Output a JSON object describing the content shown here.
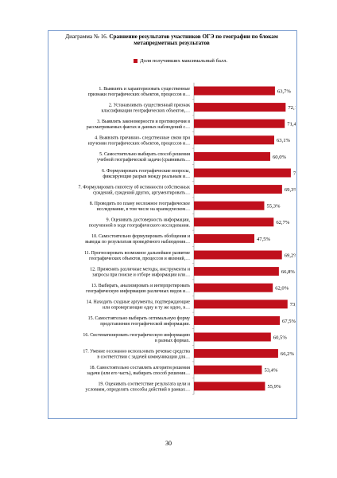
{
  "title": {
    "prefix": "Диаграмма № 16. ",
    "bold": "Сравнение результатов участников ОГЭ по географии по блокам метапредметных результатов"
  },
  "page_number": "30",
  "colors": {
    "bar": "#c0101c",
    "frame": "#7a9ccf"
  },
  "chart_data": {
    "type": "bar",
    "orientation": "horizontal",
    "legend": {
      "label": "Доля получивших максимальный балл.",
      "position": "top"
    },
    "xlim": [
      0,
      100
    ],
    "grid": false,
    "categories": [
      [
        "1. Выявлять и характеризовать существенные",
        "признаки географических объектов,  процессов и…"
      ],
      [
        "2. Устанавливать существенный признак",
        "классификации географических объектов,…"
      ],
      [
        "3. Выявлять закономерности и противоречия в",
        "рассматриваемых фактах и данных наблюдений с…"
      ],
      [
        "4. Выявлять причинно- следственные связи при",
        "изучении географических объектов, процессов и…"
      ],
      [
        "5. Самостоятельно выбирать способ решения",
        "учебной географической задачи (сравнивать…"
      ],
      [
        "6. Формулировать географические вопросы,",
        "фиксирующие разрыв между реальным и…"
      ],
      [
        "7. Формулировать гипотезу об истинности собственных",
        "суждений, суждений других, аргументировать…"
      ],
      [
        "8. Проводить по плану несложное географическое",
        "исследование, в том числе на краеведческом…"
      ],
      [
        "9. Оценивать достоверность информации,",
        "полученной в ходе географического исследования."
      ],
      [
        "10. Самостоятельно формулировать обобщения и",
        "выводы по результатам проведённого наблюдения…"
      ],
      [
        "11. Прогнозировать возможное дальнейшее развитие",
        "географических объектов, процессов и явлений,…"
      ],
      [
        "12. Применять различные методы, инструменты и",
        "запросы при поиске и отборе информации или…"
      ],
      [
        "13. Выбирать, анализировать и интерпретировать",
        "географическую информацию различных видов и…"
      ],
      [
        "14. Находить сходные аргументы, подтверждающие",
        "или опровергающие одну и ту же идею, в…"
      ],
      [
        "15. Самостоятельно выбирать оптимальную форму",
        "представления географической информации."
      ],
      [
        "16. Систематизировать географическую информацию",
        "в разных формах."
      ],
      [
        "17. Умение осознанно использовать речевые средства",
        "в соответствии с задачей коммуникации для…"
      ],
      [
        "18. Самостоятельно составлять алгоритм решения",
        "задачи (или его часть), выбирать способ решения…"
      ],
      [
        "19. Оценивать соответствие результата цели и",
        "условиям, определять способы действий в рамках…"
      ]
    ],
    "values": [
      63.7,
      72.1,
      71.4,
      63.1,
      60.0,
      76.2,
      69.3,
      55.3,
      62.7,
      47.5,
      69.2,
      66.8,
      62.0,
      73.6,
      67.5,
      60.5,
      66.2,
      53.4,
      55.9
    ],
    "value_labels": [
      "63,7%",
      "72,1%",
      "71,4%",
      "63,1%",
      "60,0%",
      "76,2%",
      "69,3%",
      "55,3%",
      "62,7%",
      "47,5%",
      "69,2%",
      "66,8%",
      "62,0%",
      "73,6%",
      "67,5%",
      "60,5%",
      "66,2%",
      "53,4%",
      "55,9%"
    ]
  }
}
